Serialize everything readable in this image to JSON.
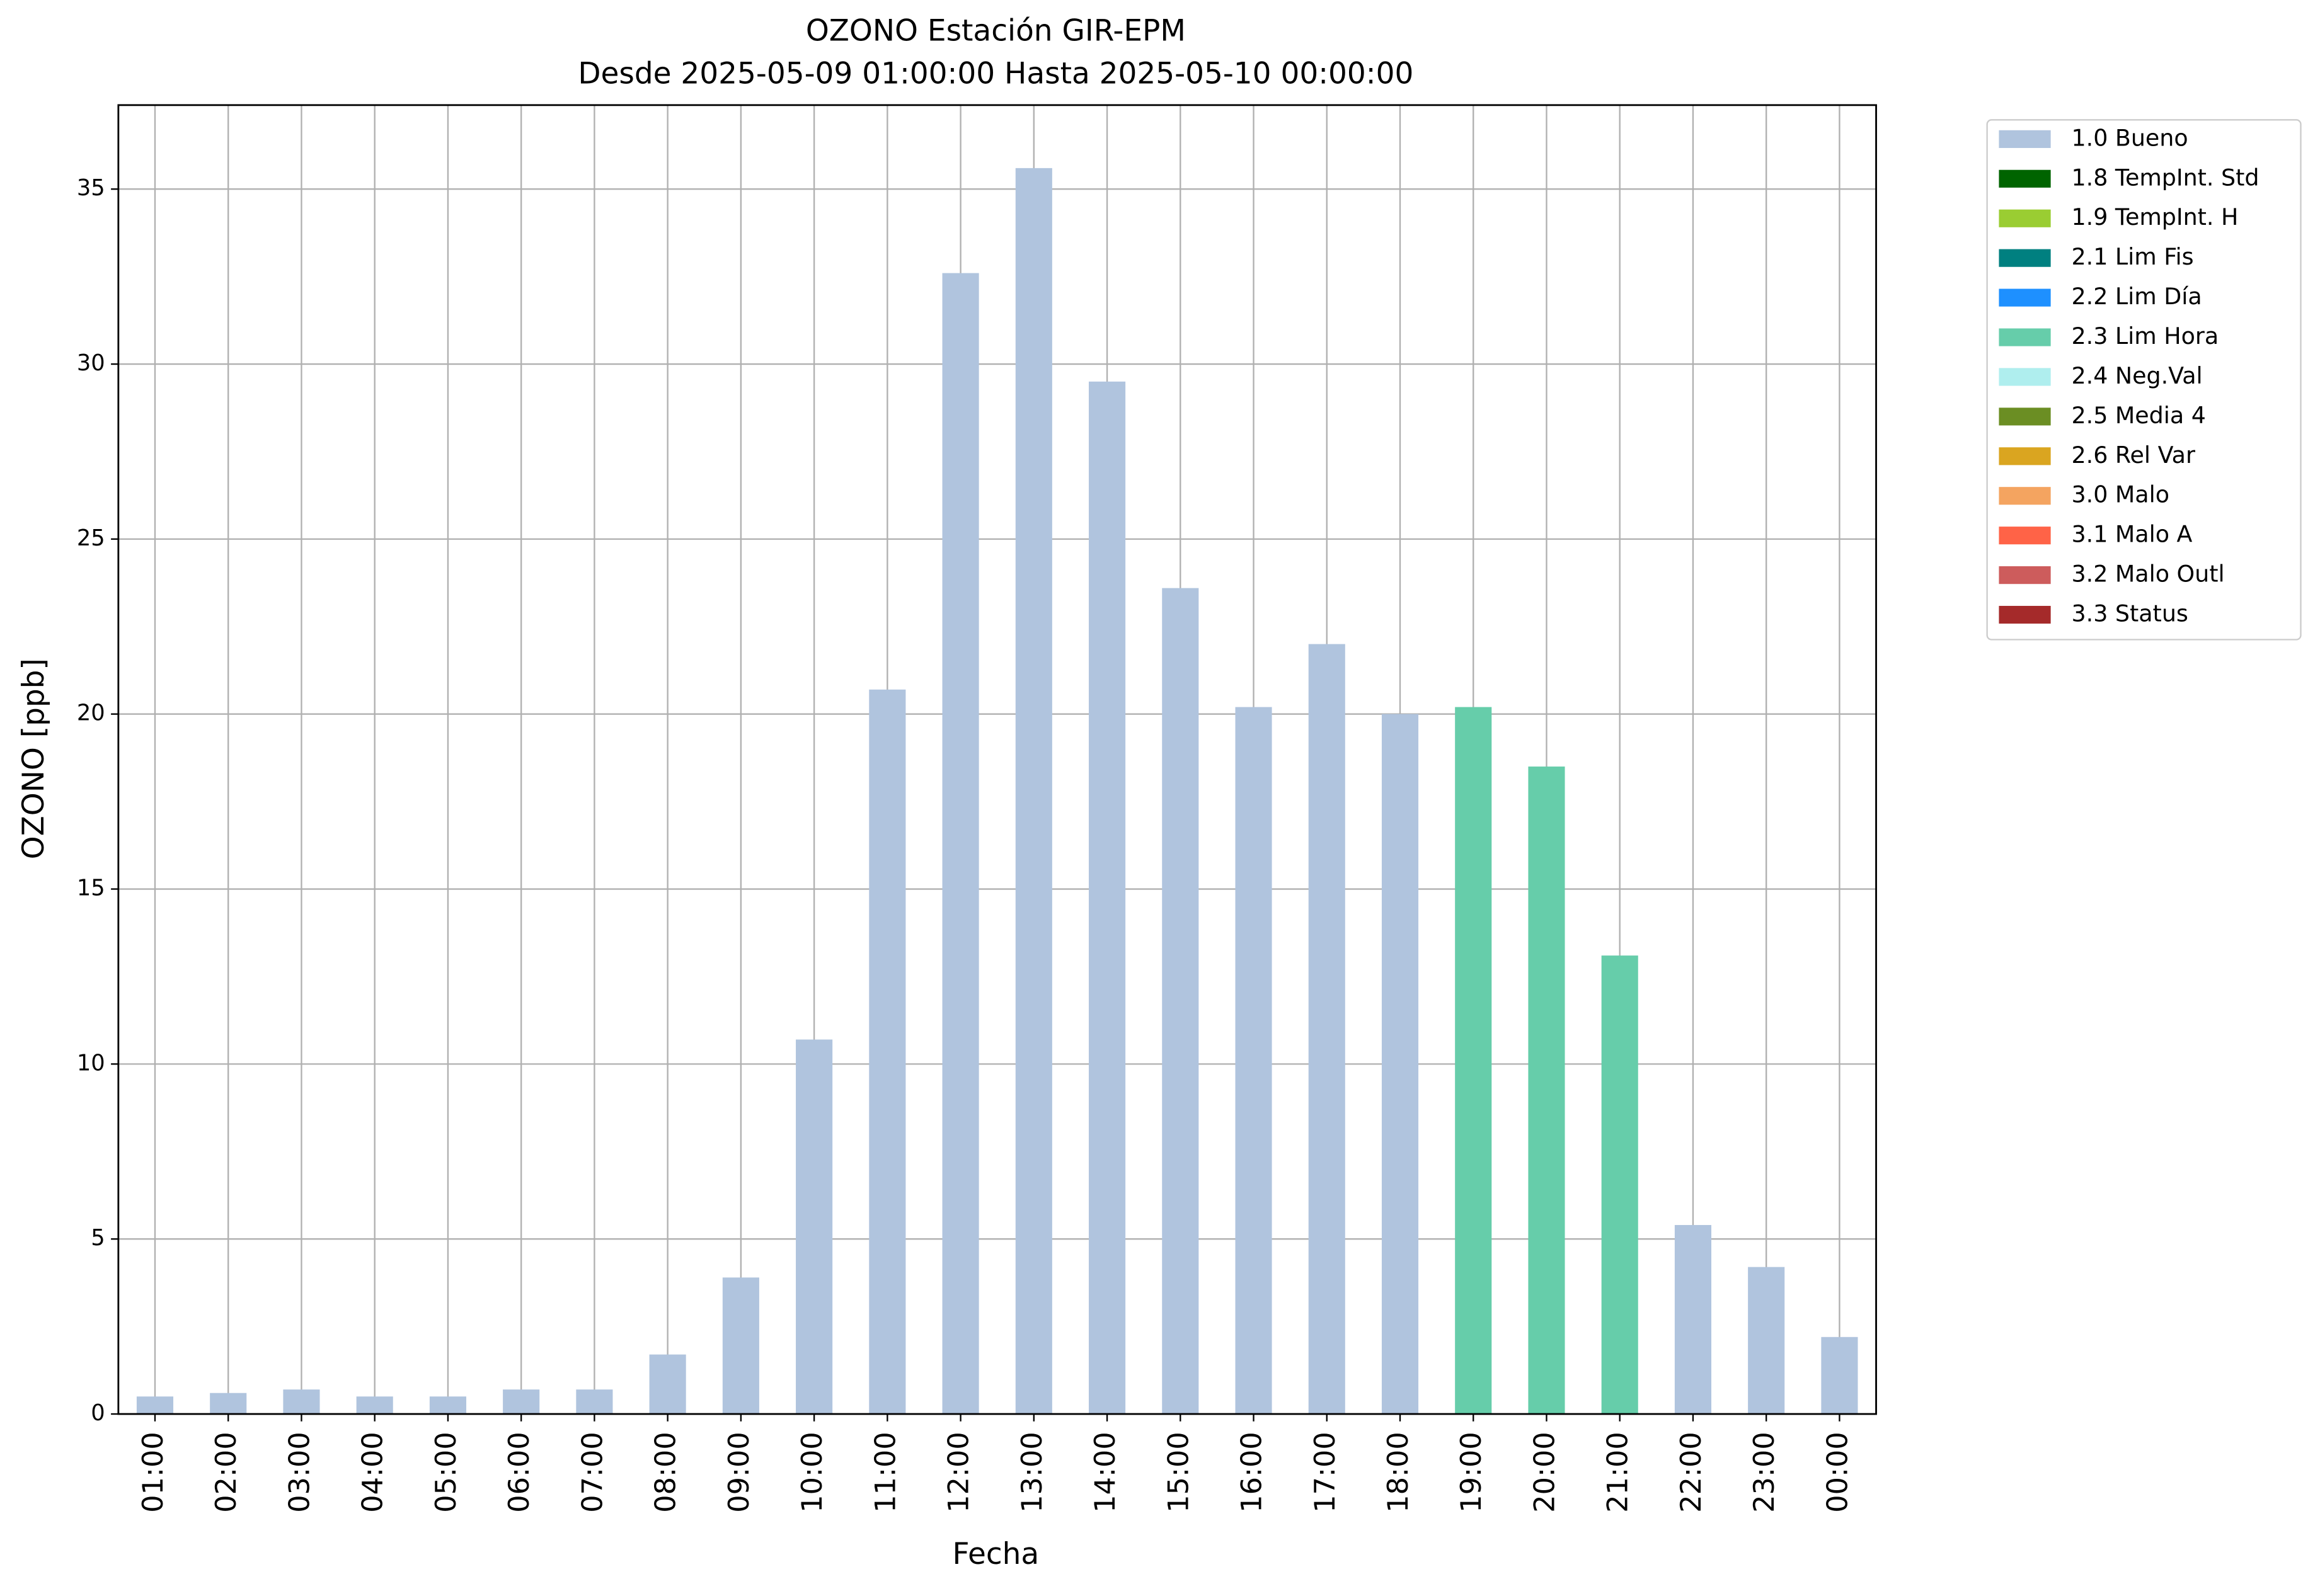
{
  "chart_data": {
    "type": "bar",
    "stacked": true,
    "title": "OZONO Estación GIR-EPM",
    "subtitle": "Desde 2025-05-09 01:00:00 Hasta 2025-05-10 00:00:00",
    "x_label": "Fecha",
    "y_label": "OZONO [ppb]",
    "categories": [
      "01:00",
      "02:00",
      "03:00",
      "04:00",
      "05:00",
      "06:00",
      "07:00",
      "08:00",
      "09:00",
      "10:00",
      "11:00",
      "12:00",
      "13:00",
      "14:00",
      "15:00",
      "16:00",
      "17:00",
      "18:00",
      "19:00",
      "20:00",
      "21:00",
      "22:00",
      "23:00",
      "00:00"
    ],
    "series": [
      {
        "name": "1.0 Bueno",
        "color": "#b0c4de",
        "values": [
          0.5,
          0.6,
          0.7,
          0.5,
          0.5,
          0.7,
          0.7,
          1.7,
          3.9,
          10.7,
          20.7,
          32.6,
          35.6,
          29.5,
          23.6,
          20.2,
          22.0,
          20.0,
          null,
          null,
          null,
          5.4,
          4.2,
          2.2
        ]
      },
      {
        "name": "1.8 TempInt. Std",
        "color": "#006400",
        "values": [
          null,
          null,
          null,
          null,
          null,
          null,
          null,
          null,
          null,
          null,
          null,
          null,
          null,
          null,
          null,
          null,
          null,
          null,
          null,
          null,
          null,
          null,
          null,
          null
        ]
      },
      {
        "name": "1.9 TempInt. H",
        "color": "#9acd32",
        "values": [
          null,
          null,
          null,
          null,
          null,
          null,
          null,
          null,
          null,
          null,
          null,
          null,
          null,
          null,
          null,
          null,
          null,
          null,
          null,
          null,
          null,
          null,
          null,
          null
        ]
      },
      {
        "name": "2.1 Lim Fis",
        "color": "#008080",
        "values": [
          null,
          null,
          null,
          null,
          null,
          null,
          null,
          null,
          null,
          null,
          null,
          null,
          null,
          null,
          null,
          null,
          null,
          null,
          null,
          null,
          null,
          null,
          null,
          null
        ]
      },
      {
        "name": "2.2 Lim Día",
        "color": "#1e90ff",
        "values": [
          null,
          null,
          null,
          null,
          null,
          null,
          null,
          null,
          null,
          null,
          null,
          null,
          null,
          null,
          null,
          null,
          null,
          null,
          null,
          null,
          null,
          null,
          null,
          null
        ]
      },
      {
        "name": "2.3 Lim Hora",
        "color": "#66cdaa",
        "values": [
          null,
          null,
          null,
          null,
          null,
          null,
          null,
          null,
          null,
          null,
          null,
          null,
          null,
          null,
          null,
          null,
          null,
          null,
          20.2,
          18.5,
          13.1,
          null,
          null,
          null
        ]
      },
      {
        "name": "2.4 Neg.Val",
        "color": "#afeeee",
        "values": [
          null,
          null,
          null,
          null,
          null,
          null,
          null,
          null,
          null,
          null,
          null,
          null,
          null,
          null,
          null,
          null,
          null,
          null,
          null,
          null,
          null,
          null,
          null,
          null
        ]
      },
      {
        "name": "2.5 Media 4",
        "color": "#6b8e23",
        "values": [
          null,
          null,
          null,
          null,
          null,
          null,
          null,
          null,
          null,
          null,
          null,
          null,
          null,
          null,
          null,
          null,
          null,
          null,
          null,
          null,
          null,
          null,
          null,
          null
        ]
      },
      {
        "name": "2.6 Rel Var",
        "color": "#daa520",
        "values": [
          null,
          null,
          null,
          null,
          null,
          null,
          null,
          null,
          null,
          null,
          null,
          null,
          null,
          null,
          null,
          null,
          null,
          null,
          null,
          null,
          null,
          null,
          null,
          null
        ]
      },
      {
        "name": "3.0 Malo",
        "color": "#f4a460",
        "values": [
          null,
          null,
          null,
          null,
          null,
          null,
          null,
          null,
          null,
          null,
          null,
          null,
          null,
          null,
          null,
          null,
          null,
          null,
          null,
          null,
          null,
          null,
          null,
          null
        ]
      },
      {
        "name": "3.1 Malo A",
        "color": "#ff6347",
        "values": [
          null,
          null,
          null,
          null,
          null,
          null,
          null,
          null,
          null,
          null,
          null,
          null,
          null,
          null,
          null,
          null,
          null,
          null,
          null,
          null,
          null,
          null,
          null,
          null
        ]
      },
      {
        "name": "3.2 Malo Outl",
        "color": "#cd5c5c",
        "values": [
          null,
          null,
          null,
          null,
          null,
          null,
          null,
          null,
          null,
          null,
          null,
          null,
          null,
          null,
          null,
          null,
          null,
          null,
          null,
          null,
          null,
          null,
          null,
          null
        ]
      },
      {
        "name": "3.3 Status",
        "color": "#a52a2a",
        "values": [
          null,
          null,
          null,
          null,
          null,
          null,
          null,
          null,
          null,
          null,
          null,
          null,
          null,
          null,
          null,
          null,
          null,
          null,
          null,
          null,
          null,
          null,
          null,
          null
        ]
      }
    ],
    "ylim": [
      0,
      37.4
    ],
    "yticks": [
      0,
      5,
      10,
      15,
      20,
      25,
      30,
      35
    ],
    "grid": true,
    "legend": "outside-upper-right"
  }
}
